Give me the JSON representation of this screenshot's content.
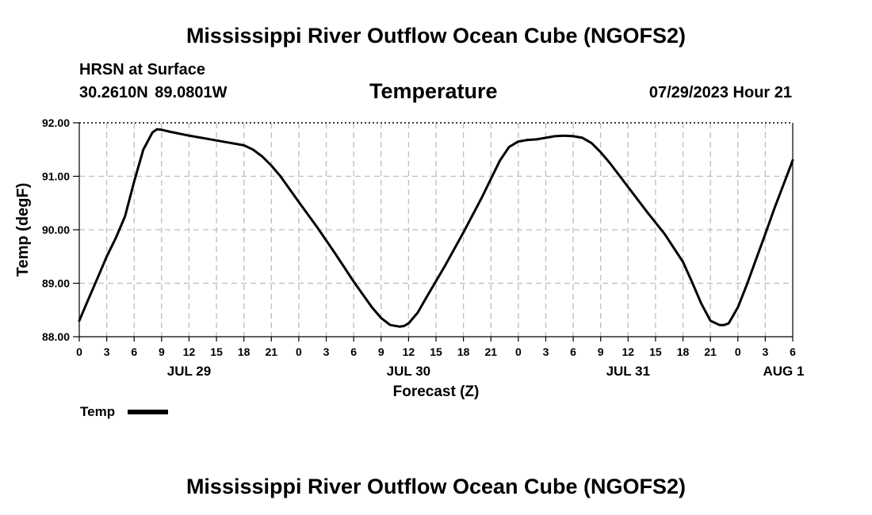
{
  "header": {
    "main_title": "Mississippi River Outflow Ocean Cube (NGOFS2)",
    "station": "HRSN at Surface",
    "coordinates": "30.2610N  89.0801W",
    "variable_title": "Temperature",
    "datetime": "07/29/2023 Hour 21"
  },
  "footer": {
    "title": "Mississippi River Outflow Ocean Cube (NGOFS2)"
  },
  "legend": {
    "label": "Temp"
  },
  "chart_data": {
    "type": "line",
    "title": "Temperature",
    "xlabel": "Forecast (Z)",
    "ylabel": "Temp (degF)",
    "ylim": [
      88.0,
      92.0
    ],
    "yticks": [
      88.0,
      89.0,
      90.0,
      91.0,
      92.0
    ],
    "ytick_labels": [
      "88.00",
      "89.00",
      "90.00",
      "91.00",
      "92.00"
    ],
    "xlim": [
      0,
      78
    ],
    "x_units": "hours from 00Z JUL 29",
    "xtick_hours": [
      0,
      3,
      6,
      9,
      12,
      15,
      18,
      21,
      24,
      27,
      30,
      33,
      36,
      39,
      42,
      45,
      48,
      51,
      54,
      57,
      60,
      63,
      66,
      69,
      72,
      75,
      78
    ],
    "xtick_labels": [
      "0",
      "3",
      "6",
      "9",
      "12",
      "15",
      "18",
      "21",
      "0",
      "3",
      "6",
      "9",
      "12",
      "15",
      "18",
      "21",
      "0",
      "3",
      "6",
      "9",
      "12",
      "15",
      "18",
      "21",
      "0",
      "3",
      "6"
    ],
    "date_labels": [
      {
        "hour": 12,
        "label": "JUL 29"
      },
      {
        "hour": 36,
        "label": "JUL 30"
      },
      {
        "hour": 60,
        "label": "JUL 31"
      },
      {
        "hour": 77,
        "label": "AUG 1"
      }
    ],
    "grid": true,
    "legend_position": "bottom-left",
    "series": [
      {
        "name": "Temp",
        "color": "#000000",
        "x": [
          0,
          1,
          2,
          3,
          4,
          5,
          6,
          7,
          8,
          8.5,
          9,
          10,
          12,
          14,
          16,
          18,
          19,
          20,
          21,
          22,
          24,
          26,
          28,
          30,
          32,
          33,
          34,
          35,
          35.5,
          36,
          37,
          38,
          40,
          42,
          44,
          45,
          46,
          47,
          48,
          49,
          50,
          51,
          52,
          53,
          54,
          55,
          56,
          57,
          58,
          60,
          62,
          64,
          66,
          67,
          68,
          69,
          70,
          70.5,
          71,
          72,
          73,
          74,
          75,
          76,
          77,
          78
        ],
        "y": [
          88.3,
          88.7,
          89.1,
          89.5,
          89.85,
          90.25,
          90.9,
          91.5,
          91.82,
          91.88,
          91.87,
          91.83,
          91.76,
          91.7,
          91.64,
          91.58,
          91.5,
          91.37,
          91.2,
          91.0,
          90.52,
          90.05,
          89.55,
          89.03,
          88.55,
          88.35,
          88.22,
          88.19,
          88.2,
          88.25,
          88.45,
          88.75,
          89.33,
          89.95,
          90.6,
          90.95,
          91.3,
          91.55,
          91.65,
          91.68,
          91.69,
          91.72,
          91.75,
          91.76,
          91.75,
          91.72,
          91.62,
          91.45,
          91.25,
          90.8,
          90.35,
          89.92,
          89.4,
          89.02,
          88.62,
          88.3,
          88.22,
          88.22,
          88.25,
          88.55,
          88.98,
          89.45,
          89.92,
          90.4,
          90.85,
          91.3
        ]
      }
    ]
  }
}
